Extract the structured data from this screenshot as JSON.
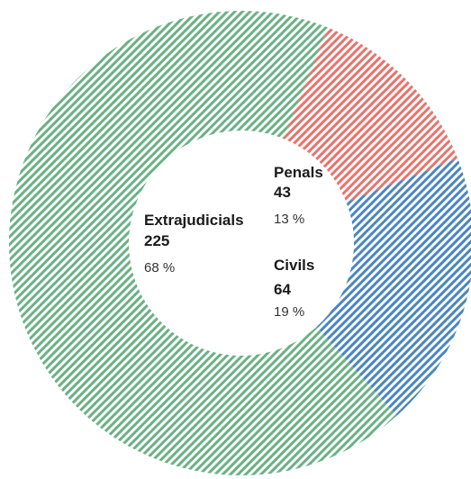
{
  "chart_data": {
    "type": "pie",
    "categories": [
      "Penals",
      "Civils",
      "Extrajudicials"
    ],
    "values": [
      43,
      64,
      225
    ],
    "percent_labels": [
      "13 %",
      "19 %",
      "68 %"
    ],
    "value_labels": [
      "43",
      "64",
      "225"
    ],
    "colors": [
      "#e8736b",
      "#4a86c0",
      "#6ab184"
    ],
    "style": "donut with diagonal hatching",
    "title": "",
    "legend": "none"
  }
}
